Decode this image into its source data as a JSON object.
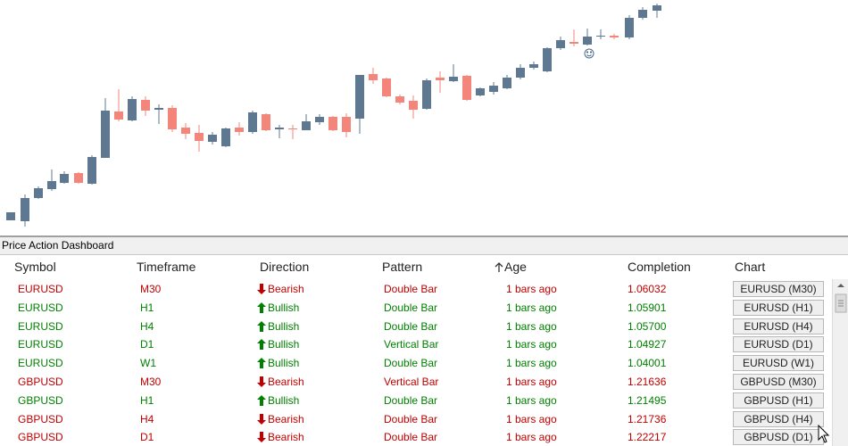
{
  "panel": {
    "title": "Price Action Dashboard"
  },
  "table": {
    "headers": [
      "Symbol",
      "Timeframe",
      "Direction",
      "Pattern",
      "Age",
      "Completion",
      "Chart"
    ],
    "sort_column": 4,
    "rows": [
      {
        "color": "#c00000",
        "arrow": "down",
        "cells": [
          "EURUSD",
          "M30",
          "Bearish",
          "Double Bar",
          "1 bars ago",
          "1.06032",
          "EURUSD (M30)"
        ]
      },
      {
        "color": "#008000",
        "arrow": "up",
        "cells": [
          "EURUSD",
          "H1",
          "Bullish",
          "Double Bar",
          "1 bars ago",
          "1.05901",
          "EURUSD (H1)"
        ]
      },
      {
        "color": "#008000",
        "arrow": "up",
        "cells": [
          "EURUSD",
          "H4",
          "Bullish",
          "Double Bar",
          "1 bars ago",
          "1.05700",
          "EURUSD (H4)"
        ]
      },
      {
        "color": "#008000",
        "arrow": "up",
        "cells": [
          "EURUSD",
          "D1",
          "Bullish",
          "Vertical Bar",
          "1 bars ago",
          "1.04927",
          "EURUSD (D1)"
        ]
      },
      {
        "color": "#008000",
        "arrow": "up",
        "cells": [
          "EURUSD",
          "W1",
          "Bullish",
          "Double Bar",
          "1 bars ago",
          "1.04001",
          "EURUSD (W1)"
        ]
      },
      {
        "color": "#c00000",
        "arrow": "down",
        "cells": [
          "GBPUSD",
          "M30",
          "Bearish",
          "Vertical Bar",
          "1 bars ago",
          "1.21636",
          "GBPUSD (M30)"
        ]
      },
      {
        "color": "#008000",
        "arrow": "up",
        "cells": [
          "GBPUSD",
          "H1",
          "Bullish",
          "Double Bar",
          "1 bars ago",
          "1.21495",
          "GBPUSD (H1)"
        ]
      },
      {
        "color": "#c00000",
        "arrow": "down",
        "cells": [
          "GBPUSD",
          "H4",
          "Bearish",
          "Double Bar",
          "1 bars ago",
          "1.21736",
          "GBPUSD (H4)"
        ]
      },
      {
        "color": "#c00000",
        "arrow": "down",
        "cells": [
          "GBPUSD",
          "D1",
          "Bearish",
          "Double Bar",
          "1 bars ago",
          "1.22217",
          "GBPUSD (D1)"
        ]
      }
    ]
  }
}
